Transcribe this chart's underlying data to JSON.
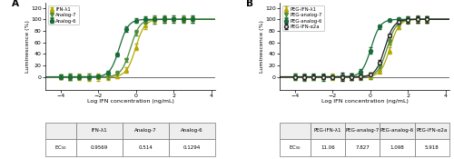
{
  "panel_A": {
    "title": "A",
    "series": [
      {
        "label": "IFN-λ1",
        "color": "#b5a800",
        "marker": "^",
        "marker_face": "#b5a800",
        "ec50_log": -0.019,
        "hill": 1.8,
        "top": 100,
        "bottom": 0
      },
      {
        "label": "Analog-7",
        "color": "#4e8c3a",
        "marker": "v",
        "marker_face": "#4e8c3a",
        "ec50_log": -0.289,
        "hill": 1.8,
        "top": 100,
        "bottom": 0
      },
      {
        "label": "Analog-6",
        "color": "#1a6b3a",
        "marker": "o",
        "marker_face": "#1a6b3a",
        "ec50_log": -0.888,
        "hill": 1.8,
        "top": 100,
        "bottom": 0
      }
    ],
    "xlim": [
      -4.8,
      4.2
    ],
    "ylim": [
      -22,
      128
    ],
    "xticks": [
      -4,
      -2,
      0,
      2,
      4
    ],
    "yticks": [
      0,
      20,
      40,
      60,
      80,
      100,
      120
    ],
    "xlabel": "Log IFN concentration (ng/mL)",
    "ylabel": "Luminescence (%)",
    "table_headers": [
      "",
      "IFN-λ1",
      "Analog-7",
      "Analog-6"
    ],
    "table_values": [
      "0.9569",
      "0.514",
      "0.1294"
    ]
  },
  "panel_B": {
    "title": "B",
    "series": [
      {
        "label": "PEG-IFN-λ1",
        "color": "#b5a800",
        "marker": "^",
        "marker_face": "#b5a800",
        "ec50_log": 1.044,
        "hill": 1.8,
        "top": 100,
        "bottom": 0
      },
      {
        "label": "PEG-analog-7",
        "color": "#4e8c3a",
        "marker": "v",
        "marker_face": "#4e8c3a",
        "ec50_log": 0.894,
        "hill": 1.8,
        "top": 100,
        "bottom": 0
      },
      {
        "label": "PEG-analog-6",
        "color": "#1a6b3a",
        "marker": "o",
        "marker_face": "#1a6b3a",
        "ec50_log": 0.041,
        "hill": 1.8,
        "top": 100,
        "bottom": 0
      },
      {
        "label": "PEG-IFN-α2a",
        "color": "#222222",
        "marker": "o",
        "marker_face": "white",
        "ec50_log": 0.772,
        "hill": 1.8,
        "top": 100,
        "bottom": 0
      }
    ],
    "xlim": [
      -4.8,
      4.2
    ],
    "ylim": [
      -22,
      128
    ],
    "xticks": [
      -4,
      -2,
      0,
      2,
      4
    ],
    "yticks": [
      0,
      20,
      40,
      60,
      80,
      100,
      120
    ],
    "xlabel": "Log IFN concentration (ng/mL)",
    "ylabel": "Luminescence (%)",
    "table_headers": [
      "",
      "PEG-IFN-λ1",
      "PEG-analog-7",
      "PEG-analog-6",
      "PEG-IFN-α2a"
    ],
    "table_values": [
      "11.06",
      "7.827",
      "1.098",
      "5.918"
    ]
  },
  "bg_color": "#ffffff"
}
